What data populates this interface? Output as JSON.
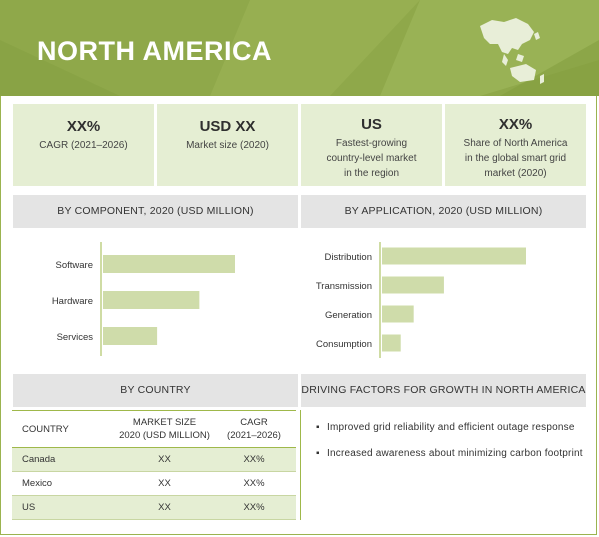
{
  "header": {
    "title": "NORTH AMERICA",
    "map_icon": "asia-pacific-map-icon"
  },
  "kpis": [
    {
      "big": "XX%",
      "small": [
        "CAGR (2021–2026)"
      ]
    },
    {
      "big": "USD XX",
      "small": [
        "Market size (2020)"
      ]
    },
    {
      "big": "US",
      "small": [
        "Fastest-growing",
        "country-level market",
        "in the region"
      ]
    },
    {
      "big": "XX%",
      "small": [
        "Share of North America",
        "in the global smart grid",
        "market (2020)"
      ]
    }
  ],
  "sections": {
    "component_title": "BY COMPONENT, 2020 (USD MILLION)",
    "application_title": "BY APPLICATION, 2020 (USD MILLION)",
    "country_title": "BY COUNTRY",
    "drivers_title": "DRIVING FACTORS FOR GROWTH IN NORTH AMERICA"
  },
  "chart_data": [
    {
      "type": "bar",
      "orientation": "horizontal",
      "title": "BY COMPONENT, 2020 (USD MILLION)",
      "categories": [
        "Software",
        "Hardware",
        "Services"
      ],
      "values": [
        100,
        73,
        41
      ],
      "value_note": "relative bar lengths; no axis scale shown",
      "color": "#cfdcaa"
    },
    {
      "type": "bar",
      "orientation": "horizontal",
      "title": "BY APPLICATION, 2020 (USD MILLION)",
      "categories": [
        "Distribution",
        "Transmission",
        "Generation",
        "Consumption"
      ],
      "values": [
        100,
        43,
        22,
        13
      ],
      "value_note": "relative bar lengths; no axis scale shown",
      "color": "#cfdcaa"
    },
    {
      "type": "table",
      "title": "BY COUNTRY",
      "columns": [
        "COUNTRY",
        "MARKET SIZE 2020 (USD MILLION)",
        "CAGR (2021–2026)"
      ],
      "rows": [
        [
          "Canada",
          "XX",
          "XX%"
        ],
        [
          "Mexico",
          "XX",
          "XX%"
        ],
        [
          "US",
          "XX",
          "XX%"
        ]
      ]
    }
  ],
  "country_table": {
    "headers": [
      [
        "COUNTRY"
      ],
      [
        "MARKET SIZE",
        "2020 (USD MILLION)"
      ],
      [
        "CAGR",
        "(2021–2026)"
      ]
    ],
    "rows": [
      {
        "country": "Canada",
        "size": "XX",
        "cagr": "XX%"
      },
      {
        "country": "Mexico",
        "size": "XX",
        "cagr": "XX%"
      },
      {
        "country": "US",
        "size": "XX",
        "cagr": "XX%"
      }
    ]
  },
  "drivers": {
    "bullet": "▪",
    "items": [
      "Improved grid reliability and efficient outage response",
      "Increased awareness about minimizing carbon footprint"
    ]
  },
  "colors": {
    "header": "#8fa84a",
    "kpi_bg": "#e5eed3",
    "bar": "#cfdcaa",
    "band": "#e4e4e4",
    "accent_line": "#9fb84a"
  }
}
